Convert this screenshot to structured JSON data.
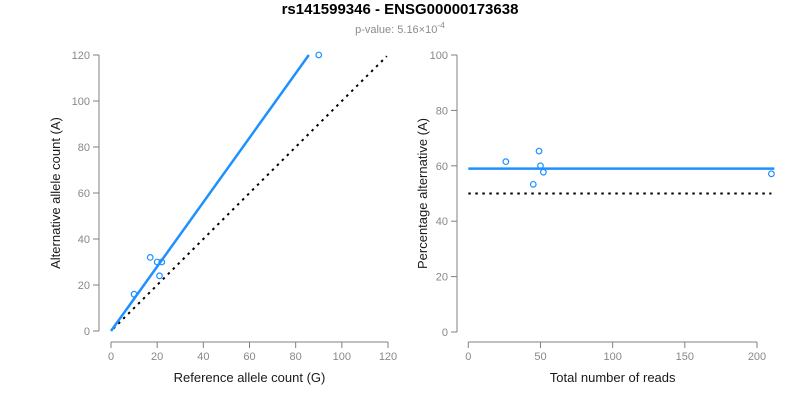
{
  "header": {
    "title": "rs141599346 - ENSG00000173638",
    "subtitle_prefix": "p-value: 5.16×10",
    "subtitle_exponent": "-4"
  },
  "colors": {
    "accent_blue": "#1E90FF",
    "reference_black": "#000000",
    "axis_line_gray": "#808080",
    "tick_label_gray": "#888888",
    "axis_title_color": "#1a1a1a",
    "subtitle_gray": "#8c8c8c"
  },
  "chart_data": [
    {
      "type": "scatter",
      "name": "allele-counts-plot",
      "xlabel": "Reference allele count (G)",
      "ylabel": "Alternative allele count (A)",
      "xlim": [
        0,
        120
      ],
      "ylim": [
        0,
        120
      ],
      "xticks": [
        0,
        20,
        40,
        60,
        80,
        100,
        120
      ],
      "yticks": [
        0,
        20,
        40,
        60,
        80,
        100,
        120
      ],
      "grid": false,
      "legend": false,
      "point_style": "open-circle",
      "points": [
        [
          10,
          16
        ],
        [
          17,
          32
        ],
        [
          20,
          30
        ],
        [
          21,
          24
        ],
        [
          22,
          30
        ],
        [
          90,
          120
        ]
      ],
      "lines": [
        {
          "name": "identity-line",
          "role": "y equals x reference",
          "x": [
            1,
            119.5
          ],
          "y": [
            1,
            119.5
          ],
          "color": "#000000",
          "dash": "dotted",
          "width": 2
        },
        {
          "name": "fit-line",
          "role": "allelic ratio fit, slope 1.4",
          "x": [
            0,
            85.7
          ],
          "y": [
            0,
            120
          ],
          "color": "#1E90FF",
          "dash": "solid",
          "width": 2.5
        }
      ]
    },
    {
      "type": "scatter",
      "name": "percentage-vs-coverage-plot",
      "xlabel": "Total number of reads",
      "ylabel": "Percentage alternative (A)",
      "xlim": [
        0,
        200
      ],
      "ylim": [
        0,
        100
      ],
      "xticks": [
        0,
        50,
        100,
        150,
        200
      ],
      "yticks": [
        0,
        20,
        40,
        60,
        80,
        100
      ],
      "grid": false,
      "legend": false,
      "point_style": "open-circle",
      "points": [
        [
          26,
          61.5
        ],
        [
          45,
          53.3
        ],
        [
          49,
          65.3
        ],
        [
          50,
          60
        ],
        [
          52,
          57.7
        ],
        [
          210,
          57.1
        ]
      ],
      "lines": [
        {
          "name": "fifty-percent-line",
          "role": "50% reference",
          "x": [
            0,
            210
          ],
          "y": [
            50,
            50
          ],
          "color": "#000000",
          "dash": "dotted",
          "width": 2
        },
        {
          "name": "mean-percentage-line",
          "role": "mean alternative percentage",
          "x": [
            0,
            212
          ],
          "y": [
            59,
            59
          ],
          "color": "#1E90FF",
          "dash": "solid",
          "width": 2.5
        }
      ]
    }
  ]
}
